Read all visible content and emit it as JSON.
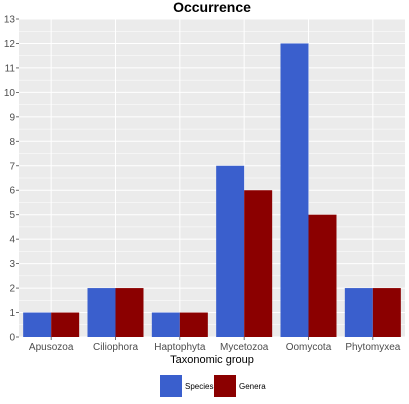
{
  "chart_data": {
    "type": "bar",
    "title": "Occurrence",
    "xlabel": "Taxonomic group",
    "ylabel": "",
    "categories": [
      "Apusozoa",
      "Ciliophora",
      "Haptophyta",
      "Mycetozoa",
      "Oomycota",
      "Phytomyxea"
    ],
    "series": [
      {
        "name": "Species",
        "values": [
          1,
          2,
          1,
          7,
          12,
          2
        ],
        "color": "#3a5fcd"
      },
      {
        "name": "Genera",
        "values": [
          1,
          2,
          1,
          6,
          5,
          2
        ],
        "color": "#8b0000"
      }
    ],
    "ylim": [
      0,
      13
    ],
    "yticks": [
      "0",
      "1",
      "2",
      "3",
      "4",
      "5",
      "6",
      "7",
      "8",
      "9",
      "10",
      "11",
      "12",
      "13"
    ],
    "grid": true,
    "legend_position": "bottom",
    "panel_color": "#ebebeb",
    "grid_color": "#ffffff"
  }
}
